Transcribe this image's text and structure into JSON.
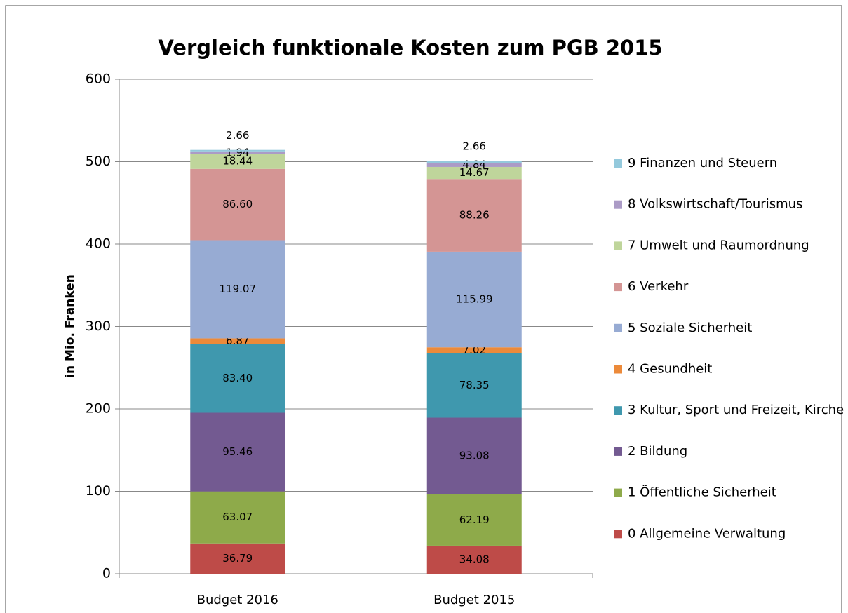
{
  "chart_data": {
    "type": "stacked-bar",
    "title": "Vergleich funktionale Kosten zum PGB 2015",
    "y_label": "in Mio. Franken",
    "categories": [
      "Budget 2016",
      "Budget 2015"
    ],
    "ylim": [
      0,
      600
    ],
    "yticks": [
      0,
      100,
      200,
      300,
      400,
      500,
      600
    ],
    "grid": true,
    "legend": "right",
    "series": [
      {
        "name": "0 Allgemeine Verwaltung",
        "color": "#be4b48",
        "values": [
          36.79,
          34.08
        ],
        "value_labels": [
          "36.79",
          "34.08"
        ]
      },
      {
        "name": "1 Öffentliche Sicherheit",
        "color": "#8eaa4a",
        "values": [
          63.07,
          62.19
        ],
        "value_labels": [
          "63.07",
          "62.19"
        ]
      },
      {
        "name": "2 Bildung",
        "color": "#735a91",
        "values": [
          95.46,
          93.08
        ],
        "value_labels": [
          "95.46",
          "93.08"
        ]
      },
      {
        "name": "3 Kultur, Sport und Freizeit, Kirche",
        "color": "#3f98ae",
        "values": [
          83.4,
          78.35
        ],
        "value_labels": [
          "83.40",
          "78.35"
        ]
      },
      {
        "name": "4 Gesundheit",
        "color": "#ec8a3a",
        "values": [
          6.87,
          7.02
        ],
        "value_labels": [
          "6.87",
          "7.02"
        ]
      },
      {
        "name": "5 Soziale Sicherheit",
        "color": "#97abd3",
        "values": [
          119.07,
          115.99
        ],
        "value_labels": [
          "119.07",
          "115.99"
        ]
      },
      {
        "name": "6 Verkehr",
        "color": "#d49594",
        "values": [
          86.6,
          88.26
        ],
        "value_labels": [
          "86.60",
          "88.26"
        ]
      },
      {
        "name": "7 Umwelt und Raumordnung",
        "color": "#bfd59b",
        "values": [
          18.44,
          14.67
        ],
        "value_labels": [
          "18.44",
          "14.67"
        ]
      },
      {
        "name": "8 Volkswirtschaft/Tourismus",
        "color": "#ab9bc6",
        "values": [
          1.94,
          4.84
        ],
        "value_labels": [
          "1.94",
          "4.84"
        ]
      },
      {
        "name": "9 Finanzen und Steuern",
        "color": "#94c9dc",
        "values": [
          2.66,
          2.66
        ],
        "value_labels": [
          "2.66",
          "2.66"
        ]
      }
    ]
  }
}
